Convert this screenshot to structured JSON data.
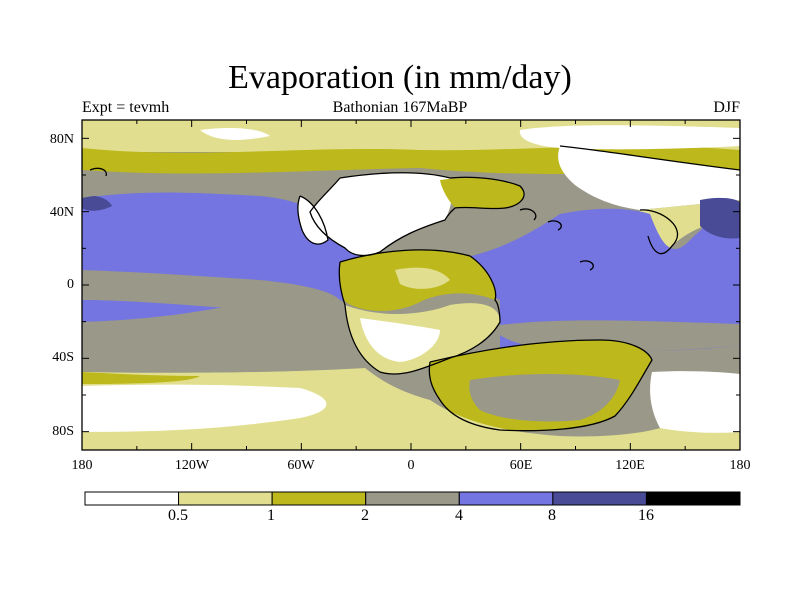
{
  "title": "Evaporation (in mm/day)",
  "subtitle_left": "Expt = tevmh",
  "subtitle_center": "Bathonian 167MaBP",
  "subtitle_right": "DJF",
  "lat_labels": [
    "80N",
    "40N",
    "0",
    "40S",
    "80S"
  ],
  "lon_labels": [
    "180",
    "120W",
    "60W",
    "0",
    "60E",
    "120E",
    "180"
  ],
  "colorbar": {
    "labels": [
      "0.5",
      "1",
      "2",
      "4",
      "8",
      "16"
    ],
    "colors": [
      "#ffffff",
      "#e1df8f",
      "#bdb81b",
      "#999889",
      "#7475e0",
      "#4a4b96",
      "#000000"
    ]
  },
  "colors": {
    "coast": "#000000",
    "frame": "#000000"
  }
}
